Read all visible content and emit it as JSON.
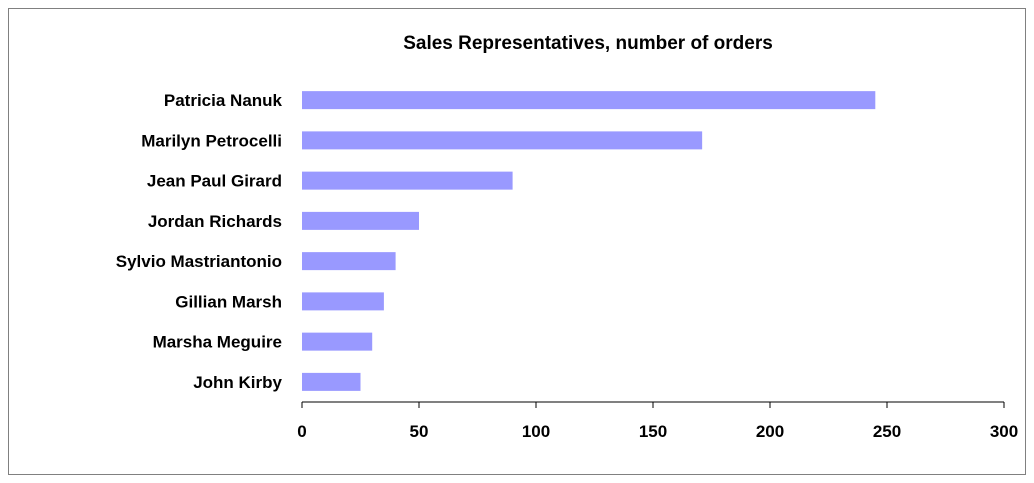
{
  "chart_data": {
    "type": "bar",
    "orientation": "horizontal",
    "title": "Sales Representatives, number of orders",
    "xlabel": "",
    "ylabel": "",
    "categories": [
      "Patricia Nanuk",
      "Marilyn Petrocelli",
      "Jean Paul Girard",
      "Jordan Richards",
      "Sylvio Mastriantonio",
      "Gillian Marsh",
      "Marsha Meguire",
      "John Kirby"
    ],
    "values": [
      245,
      171,
      90,
      50,
      40,
      35,
      30,
      25
    ],
    "xlim": [
      0,
      300
    ],
    "xticks": [
      "0",
      "50",
      "100",
      "150",
      "200",
      "250",
      "300"
    ],
    "grid": false,
    "legend": "none",
    "bar_color": "#9999ff"
  }
}
